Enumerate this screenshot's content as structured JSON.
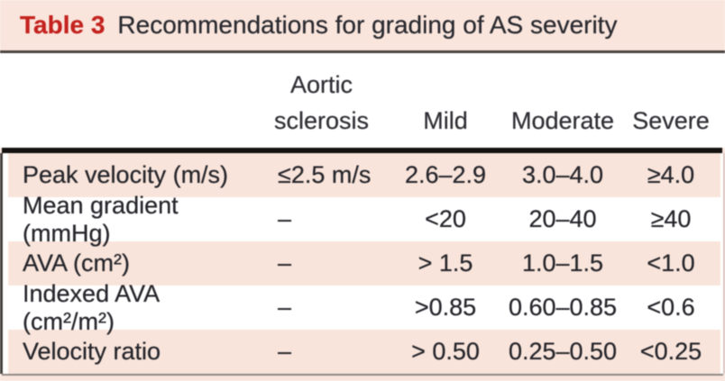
{
  "title": {
    "label": "Table 3",
    "text": "Recommendations for grading of AS severity"
  },
  "colors": {
    "page_background": "#f9e5dc",
    "stripe_pink": "#f8e4da",
    "title_red": "#c4231f",
    "text_dark": "#26262c",
    "rule_heavy_black": "#141210",
    "rule_top_gray": "#4a4340",
    "rule_bottom_gray": "#908a85"
  },
  "table": {
    "columns": [
      {
        "label": ""
      },
      {
        "label": "Aortic sclerosis",
        "label_lines": [
          "Aortic",
          "sclerosis"
        ]
      },
      {
        "label": "Mild"
      },
      {
        "label": "Moderate"
      },
      {
        "label": "Severe"
      }
    ],
    "rows": [
      {
        "cells": [
          "Peak velocity (m/s)",
          "≤2.5 m/s",
          "2.6–2.9",
          "3.0–4.0",
          "≥4.0"
        ]
      },
      {
        "cells": [
          "Mean gradient (mmHg)",
          "–",
          "<20",
          "20–40",
          "≥40"
        ]
      },
      {
        "cells": [
          "AVA (cm²)",
          "–",
          "> 1.5",
          "1.0–1.5",
          "<1.0"
        ]
      },
      {
        "cells": [
          "Indexed AVA (cm²/m²)",
          "–",
          ">0.85",
          "0.60–0.85",
          "<0.6"
        ]
      },
      {
        "cells": [
          "Velocity ratio",
          "–",
          "> 0.50",
          "0.25–0.50",
          "<0.25"
        ]
      }
    ]
  }
}
